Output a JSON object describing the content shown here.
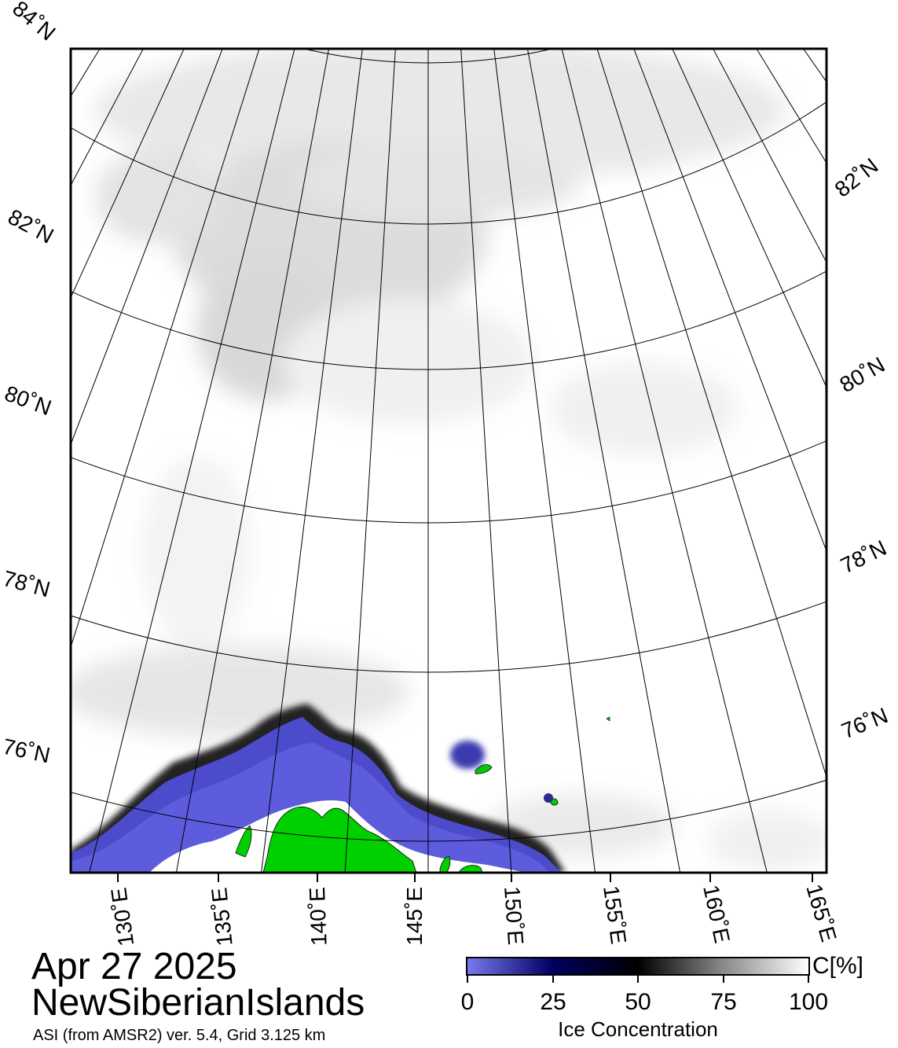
{
  "map": {
    "date": "Apr 27 2025",
    "region": "NewSiberianIslands",
    "source": "ASI (from AMSR2) ver. 5.4,  Grid 3.125 km",
    "colors": {
      "background": "#ffffff",
      "ice_low": "#6b6be6",
      "ice_mid": "#000050",
      "ice_high": "#000000",
      "ice_full": "#ffffff",
      "land": "#00d000",
      "frame": "#000000"
    },
    "latitude_labels_left": [
      "84˚N",
      "82˚N",
      "80˚N",
      "78˚N",
      "76˚N"
    ],
    "latitude_labels_right": [
      "82˚N",
      "80˚N",
      "78˚N",
      "76˚N"
    ],
    "longitude_labels": [
      "130˚E",
      "135˚E",
      "140˚E",
      "145˚E",
      "150˚E",
      "155˚E",
      "160˚E",
      "165˚E"
    ],
    "colorbar": {
      "title": "Ice Concentration",
      "unit": "C[%]",
      "ticks": [
        "0",
        "25",
        "50",
        "75",
        "100"
      ],
      "range": [
        0,
        100
      ]
    }
  }
}
